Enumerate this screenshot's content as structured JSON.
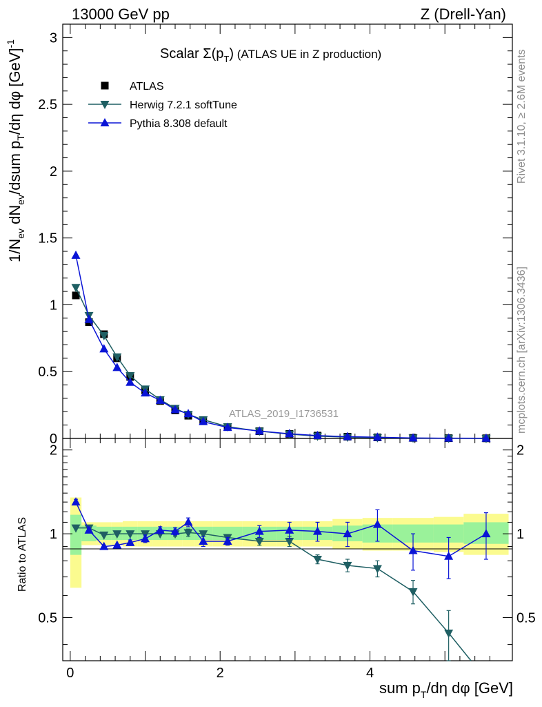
{
  "header": {
    "left": "13000 GeV pp",
    "right": "Z (Drell-Yan)"
  },
  "side_labels": {
    "rivet": "Rivet 3.1.10, ≥ 2.6M events",
    "mcplots": "mcplots.cern.ch [arXiv:1306.3436]"
  },
  "plot_title": {
    "main": "Scalar Σ(p",
    "sub": "T",
    "close": ")",
    "suffix": " (ATLAS UE in Z production)"
  },
  "watermark": "ATLAS_2019_I1736531",
  "colors": {
    "atlas": "#000000",
    "herwig": "#1f5f63",
    "pythia": "#0a14d6",
    "band_inner": "#9af29a",
    "band_outer": "#fbfb8f"
  },
  "chart_data": [
    {
      "type": "line",
      "panel": "main",
      "title": "Scalar Σ(p_T) (ATLAS UE in Z production)",
      "xlabel": "sum p_T/dη dφ [GeV]",
      "ylabel": "1/N_ev dN_ev/dsum p_T/dη dφ [GeV]^-1",
      "xlim": [
        -0.1,
        5.9
      ],
      "ylim": [
        0,
        3.1
      ],
      "yticks": [
        0,
        0.5,
        1,
        1.5,
        2,
        2.5,
        3
      ],
      "ytick_labels": [
        "0",
        "0.5",
        "1",
        "1.5",
        "2",
        "2.5",
        "3"
      ],
      "legend_position": "top-left",
      "x": [
        0.075,
        0.25,
        0.45,
        0.625,
        0.8,
        1.0,
        1.2,
        1.4,
        1.575,
        1.775,
        2.1,
        2.525,
        2.925,
        3.3,
        3.7,
        4.1,
        4.575,
        5.05,
        5.55
      ],
      "series": [
        {
          "name": "ATLAS",
          "marker": "square",
          "values": [
            1.07,
            0.87,
            0.78,
            0.6,
            0.46,
            0.36,
            0.28,
            0.21,
            0.17,
            0.13,
            0.085,
            0.054,
            0.034,
            0.021,
            0.013,
            0.008,
            0.004,
            0.002,
            0.001
          ]
        },
        {
          "name": "Herwig 7.2.1 softTune",
          "marker": "triangle-down",
          "values": [
            1.13,
            0.92,
            0.77,
            0.61,
            0.47,
            0.37,
            0.29,
            0.225,
            0.18,
            0.14,
            0.088,
            0.054,
            0.032,
            0.017,
            0.01,
            0.006,
            0.0025,
            0.001,
            0.0003
          ]
        },
        {
          "name": "Pythia 8.308 default",
          "marker": "triangle-up",
          "values": [
            1.37,
            0.89,
            0.67,
            0.53,
            0.42,
            0.34,
            0.285,
            0.215,
            0.185,
            0.125,
            0.082,
            0.055,
            0.035,
            0.021,
            0.013,
            0.0088,
            0.0035,
            0.0017,
            0.001
          ]
        }
      ]
    },
    {
      "type": "line",
      "panel": "ratio",
      "ylabel": "Ratio to ATLAS",
      "xlabel": "sum p_T/dη dφ [GeV]",
      "xlim": [
        -0.1,
        5.9
      ],
      "ylim": [
        0.35,
        2.2
      ],
      "yscale": "log",
      "yticks": [
        0.5,
        1,
        2
      ],
      "ytick_labels": [
        "0.5",
        "1",
        "2"
      ],
      "xticks": [
        0,
        2,
        4
      ],
      "xtick_labels": [
        "0",
        "2",
        "4"
      ],
      "bin_edges": [
        0.0,
        0.15,
        0.35,
        0.55,
        0.7,
        0.9,
        1.1,
        1.3,
        1.5,
        1.65,
        1.9,
        2.3,
        2.75,
        3.1,
        3.5,
        3.9,
        4.3,
        4.85,
        5.25,
        5.85
      ],
      "band_inner": [
        [
          0.84,
          1.17
        ],
        [
          0.94,
          1.07
        ],
        [
          0.95,
          1.06
        ],
        [
          0.95,
          1.06
        ],
        [
          0.95,
          1.06
        ],
        [
          0.95,
          1.06
        ],
        [
          0.95,
          1.06
        ],
        [
          0.95,
          1.06
        ],
        [
          0.95,
          1.06
        ],
        [
          0.95,
          1.06
        ],
        [
          0.95,
          1.06
        ],
        [
          0.95,
          1.06
        ],
        [
          0.95,
          1.06
        ],
        [
          0.95,
          1.06
        ],
        [
          0.94,
          1.07
        ],
        [
          0.93,
          1.08
        ],
        [
          0.93,
          1.08
        ],
        [
          0.93,
          1.08
        ],
        [
          0.92,
          1.1
        ]
      ],
      "band_outer": [
        [
          0.64,
          1.35
        ],
        [
          0.91,
          1.1
        ],
        [
          0.91,
          1.1
        ],
        [
          0.91,
          1.1
        ],
        [
          0.9,
          1.11
        ],
        [
          0.9,
          1.11
        ],
        [
          0.9,
          1.11
        ],
        [
          0.9,
          1.11
        ],
        [
          0.9,
          1.11
        ],
        [
          0.9,
          1.11
        ],
        [
          0.9,
          1.11
        ],
        [
          0.9,
          1.11
        ],
        [
          0.9,
          1.11
        ],
        [
          0.9,
          1.11
        ],
        [
          0.88,
          1.13
        ],
        [
          0.87,
          1.14
        ],
        [
          0.87,
          1.14
        ],
        [
          0.86,
          1.15
        ],
        [
          0.84,
          1.18
        ]
      ],
      "series": [
        {
          "name": "Herwig 7.2.1 softTune",
          "values": [
            1.05,
            1.05,
            0.99,
            1.0,
            1.0,
            1.0,
            1.0,
            1.0,
            1.01,
            1.0,
            0.97,
            0.94,
            0.94,
            0.81,
            0.77,
            0.75,
            0.62,
            0.44,
            0.3
          ],
          "err": [
            0.0,
            0.0,
            0.0,
            0.0,
            0.0,
            0.0,
            0.0,
            0.02,
            0.03,
            0.02,
            0.02,
            0.03,
            0.04,
            0.03,
            0.04,
            0.05,
            0.06,
            0.09,
            0.0
          ]
        },
        {
          "name": "Pythia 8.308 default",
          "values": [
            1.3,
            1.03,
            0.9,
            0.91,
            0.93,
            0.96,
            1.03,
            1.02,
            1.1,
            0.94,
            0.94,
            1.02,
            1.03,
            1.02,
            1.0,
            1.08,
            0.87,
            0.83,
            1.0
          ],
          "err": [
            0.03,
            0.02,
            0.0,
            0.0,
            0.02,
            0.03,
            0.03,
            0.03,
            0.04,
            0.04,
            0.03,
            0.05,
            0.07,
            0.08,
            0.1,
            0.14,
            0.13,
            0.14,
            0.19
          ]
        }
      ]
    }
  ]
}
